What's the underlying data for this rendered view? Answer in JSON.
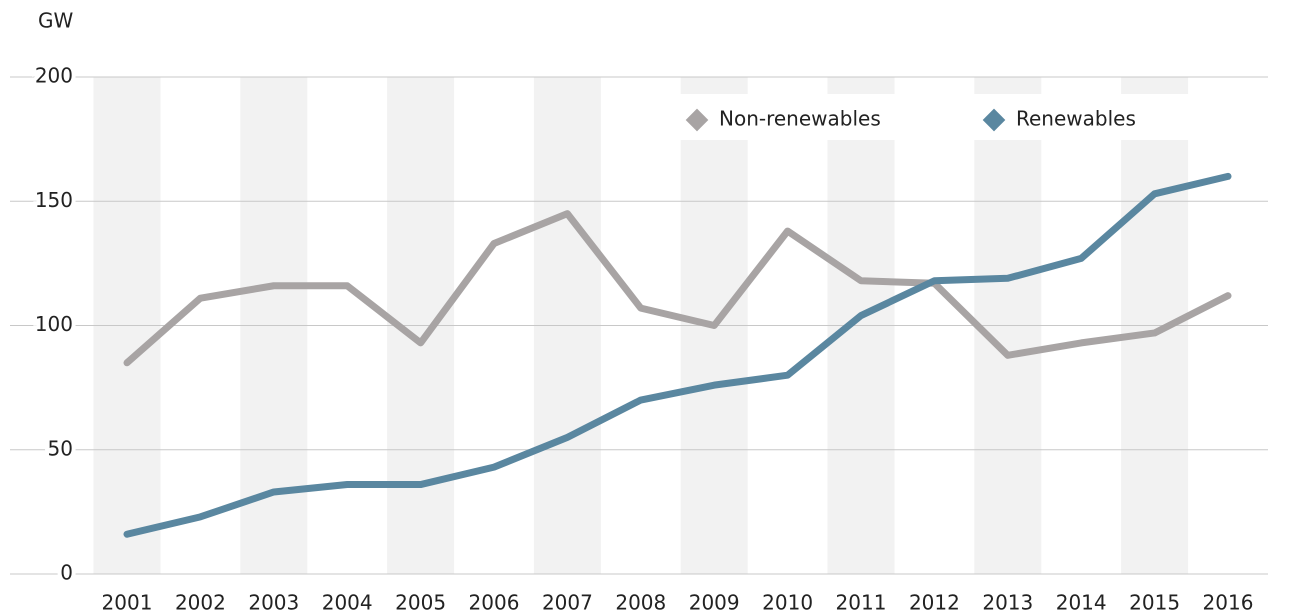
{
  "chart_data": {
    "type": "line",
    "y_label": "GW",
    "categories": [
      "2001",
      "2002",
      "2003",
      "2004",
      "2005",
      "2006",
      "2007",
      "2008",
      "2009",
      "2010",
      "2011",
      "2012",
      "2013",
      "2014",
      "2015",
      "2016"
    ],
    "series": [
      {
        "name": "Non-renewables",
        "color": "#a8a4a4",
        "values": [
          85,
          111,
          116,
          116,
          93,
          133,
          145,
          107,
          100,
          138,
          118,
          117,
          88,
          93,
          97,
          112
        ]
      },
      {
        "name": "Renewables",
        "color": "#5a87a0",
        "values": [
          16,
          23,
          33,
          36,
          36,
          43,
          55,
          70,
          76,
          80,
          104,
          118,
          119,
          127,
          153,
          160
        ]
      }
    ],
    "ylim": [
      0,
      200
    ],
    "yticks": [
      0,
      50,
      100,
      150,
      200
    ],
    "grid": true,
    "legend": "top-right"
  }
}
